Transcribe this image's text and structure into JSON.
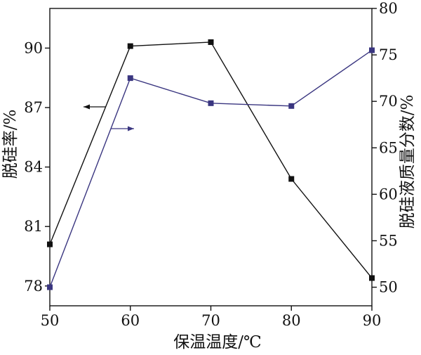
{
  "chart_data": {
    "type": "line",
    "title": "",
    "xlabel": "保温温度/℃",
    "ylabel_left": "脱硅率/%",
    "ylabel_right": "脱硅液质量分数/%",
    "x": [
      50,
      60,
      70,
      80,
      90
    ],
    "xlim": [
      50,
      90
    ],
    "xticks": [
      "50",
      "60",
      "70",
      "80",
      "90"
    ],
    "ylim_left": [
      77,
      92
    ],
    "yticks_left": [
      "78",
      "81",
      "84",
      "87",
      "90"
    ],
    "ylim_right": [
      48,
      80
    ],
    "yticks_right": [
      "50",
      "55",
      "60",
      "65",
      "70",
      "75",
      "80"
    ],
    "grid": false,
    "series": [
      {
        "axis": "left",
        "color": "#111111",
        "marker": "square",
        "values": [
          80.1,
          90.1,
          90.3,
          83.4,
          78.4
        ]
      },
      {
        "axis": "right",
        "color": "#3a3680",
        "marker": "square",
        "values": [
          50.0,
          72.5,
          69.8,
          69.5,
          75.5
        ]
      }
    ],
    "annotations": [
      {
        "type": "arrow",
        "direction": "left",
        "axis": "left",
        "color": "#111111"
      },
      {
        "type": "arrow",
        "direction": "right",
        "axis": "right",
        "color": "#3a3680"
      }
    ]
  }
}
